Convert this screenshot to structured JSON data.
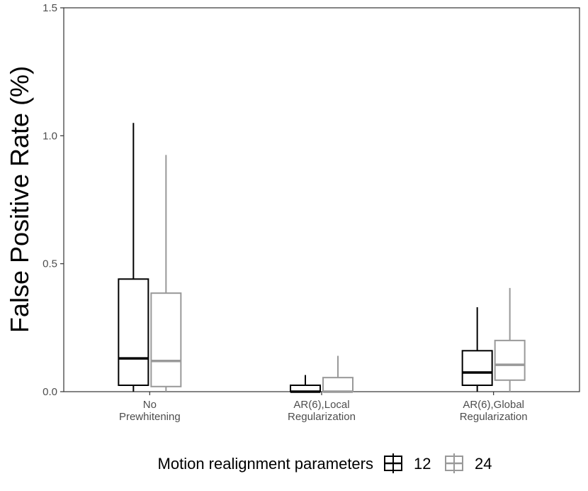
{
  "chart_data": {
    "type": "boxplot",
    "ylabel": "False Positive Rate (%)",
    "xlabel": "",
    "ylim": [
      0,
      1.5
    ],
    "yticks": [
      {
        "value": 0.0,
        "label": "0.0"
      },
      {
        "value": 0.5,
        "label": "0.5"
      },
      {
        "value": 1.0,
        "label": "1.0"
      },
      {
        "value": 1.5,
        "label": "1.5"
      }
    ],
    "categories": [
      {
        "lines": [
          "No",
          "Prewhitening"
        ]
      },
      {
        "lines": [
          "AR(6),Local",
          "Regularization"
        ]
      },
      {
        "lines": [
          "AR(6),Global",
          "Regularization"
        ]
      }
    ],
    "grid": false,
    "legend": {
      "position": "bottom",
      "title": "Motion realignment parameters",
      "entries": [
        {
          "name": "12",
          "color": "#000000"
        },
        {
          "name": "24",
          "color": "#999999"
        }
      ]
    },
    "series": [
      {
        "name": "12",
        "color": "#000000",
        "boxes": [
          {
            "min": 0.0,
            "q1": 0.025,
            "median": 0.13,
            "q3": 0.44,
            "max": 1.05
          },
          {
            "min": 0.0,
            "q1": 0.0,
            "median": 0.0,
            "q3": 0.025,
            "max": 0.065
          },
          {
            "min": 0.0,
            "q1": 0.025,
            "median": 0.075,
            "q3": 0.16,
            "max": 0.33
          }
        ]
      },
      {
        "name": "24",
        "color": "#999999",
        "boxes": [
          {
            "min": 0.0,
            "q1": 0.02,
            "median": 0.12,
            "q3": 0.385,
            "max": 0.925
          },
          {
            "min": 0.0,
            "q1": 0.0,
            "median": 0.0,
            "q3": 0.055,
            "max": 0.14
          },
          {
            "min": 0.0,
            "q1": 0.045,
            "median": 0.105,
            "q3": 0.2,
            "max": 0.405
          }
        ]
      }
    ]
  }
}
